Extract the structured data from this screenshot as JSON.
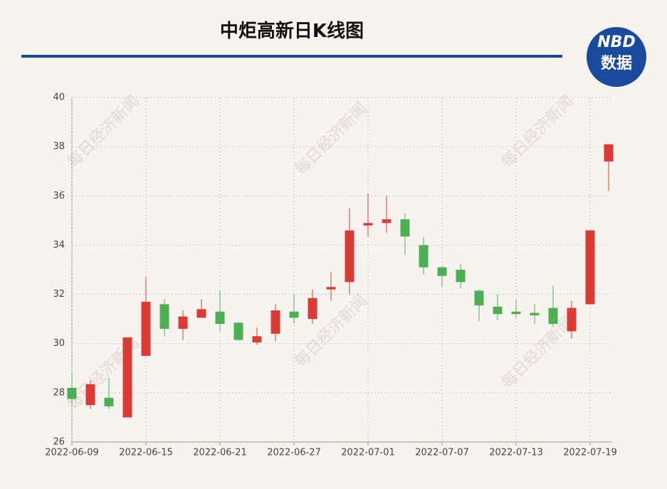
{
  "chart_data": {
    "type": "candlestick",
    "title": "中炬高新日K线图",
    "brand": {
      "line1": "NBD",
      "line2": "数据"
    },
    "watermark": "每日经济新闻",
    "categories": [
      "2022-06-09",
      null,
      null,
      null,
      "2022-06-15",
      null,
      null,
      null,
      "2022-06-21",
      null,
      null,
      null,
      "2022-06-27",
      null,
      null,
      null,
      "2022-07-01",
      null,
      null,
      null,
      "2022-07-07",
      null,
      null,
      null,
      "2022-07-13",
      null,
      null,
      null,
      "2022-07-19",
      null
    ],
    "open": [
      28.2,
      27.5,
      27.8,
      27.0,
      29.5,
      31.6,
      30.6,
      31.05,
      31.3,
      30.85,
      30.05,
      30.4,
      31.3,
      31.0,
      32.2,
      32.5,
      34.8,
      34.9,
      35.05,
      34.0,
      33.1,
      33.0,
      32.15,
      31.5,
      31.3,
      31.25,
      31.45,
      30.5,
      31.6,
      37.4
    ],
    "close": [
      27.75,
      28.35,
      27.45,
      30.25,
      31.7,
      30.6,
      31.1,
      31.4,
      30.8,
      30.15,
      30.3,
      31.35,
      31.05,
      31.85,
      32.3,
      34.6,
      34.9,
      35.05,
      34.35,
      33.1,
      32.75,
      32.5,
      31.55,
      31.2,
      31.2,
      31.15,
      30.8,
      31.45,
      34.6,
      38.1
    ],
    "low": [
      27.55,
      27.35,
      27.35,
      27.0,
      29.5,
      30.3,
      30.15,
      31.05,
      30.5,
      30.1,
      29.95,
      30.1,
      30.8,
      30.8,
      31.75,
      32.0,
      34.35,
      34.5,
      33.6,
      32.8,
      32.3,
      32.25,
      30.9,
      30.95,
      31.05,
      30.8,
      30.7,
      30.2,
      31.6,
      36.2
    ],
    "high": [
      28.8,
      28.5,
      28.6,
      30.25,
      32.7,
      31.8,
      31.35,
      31.8,
      32.15,
      30.85,
      30.65,
      31.6,
      32.0,
      32.2,
      32.9,
      35.5,
      36.1,
      36.0,
      35.3,
      34.35,
      33.15,
      33.25,
      32.2,
      32.0,
      31.8,
      31.6,
      32.35,
      31.75,
      34.6,
      38.1
    ],
    "up_color": "#dc3b35",
    "down_color": "#4daf54",
    "ylim": [
      26,
      40
    ],
    "yticks": [
      26,
      28,
      30,
      32,
      34,
      36,
      38,
      40
    ],
    "grid": true
  }
}
